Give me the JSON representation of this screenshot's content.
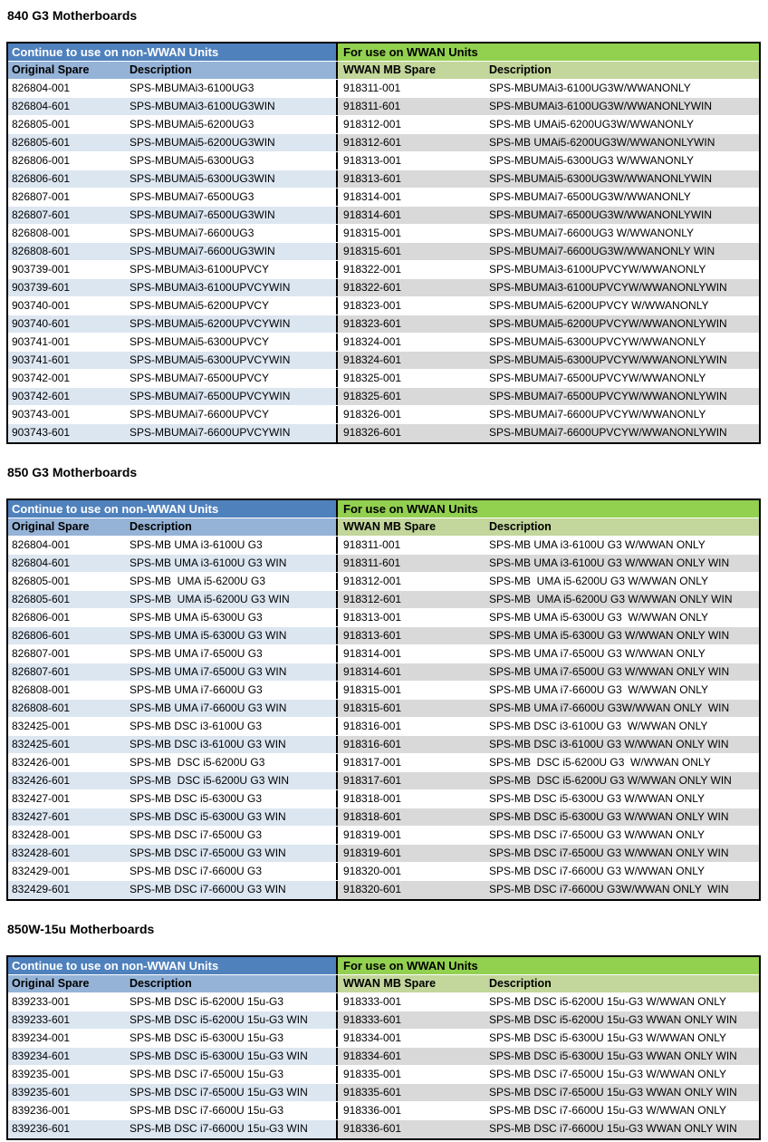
{
  "colors": {
    "header_blue": "#4f81bd",
    "header_green": "#92d050",
    "subheader_blue": "#95b3d7",
    "subheader_green": "#c3d69b",
    "stripe_blue": "#dce6f1",
    "stripe_gray": "#d9d9d9"
  },
  "sections": [
    {
      "title": "840 G3 Motherboards",
      "left_header": "Continue to use on non-WWAN Units",
      "right_header": "For use on WWAN Units",
      "columns": [
        "Original Spare",
        "Description",
        "WWAN MB Spare",
        "Description"
      ],
      "rows": [
        [
          "826804-001",
          "SPS-MBUMAi3-6100UG3",
          "918311-001",
          "SPS-MBUMAi3-6100UG3W/WWANONLY"
        ],
        [
          "826804-601",
          "SPS-MBUMAi3-6100UG3WIN",
          "918311-601",
          "SPS-MBUMAi3-6100UG3W/WWANONLYWIN"
        ],
        [
          "826805-001",
          "SPS-MBUMAi5-6200UG3",
          "918312-001",
          "SPS-MB UMAi5-6200UG3W/WWANONLY"
        ],
        [
          "826805-601",
          "SPS-MBUMAi5-6200UG3WIN",
          "918312-601",
          "SPS-MB UMAi5-6200UG3W/WWANONLYWIN"
        ],
        [
          "826806-001",
          "SPS-MBUMAi5-6300UG3",
          "918313-001",
          "SPS-MBUMAi5-6300UG3 W/WWANONLY"
        ],
        [
          "826806-601",
          "SPS-MBUMAi5-6300UG3WIN",
          "918313-601",
          "SPS-MBUMAi5-6300UG3W/WWANONLYWIN"
        ],
        [
          "826807-001",
          "SPS-MBUMAi7-6500UG3",
          "918314-001",
          "SPS-MBUMAi7-6500UG3W/WWANONLY"
        ],
        [
          "826807-601",
          "SPS-MBUMAi7-6500UG3WIN",
          "918314-601",
          "SPS-MBUMAi7-6500UG3W/WWANONLYWIN"
        ],
        [
          "826808-001",
          "SPS-MBUMAi7-6600UG3",
          "918315-001",
          "SPS-MBUMAi7-6600UG3 W/WWANONLY"
        ],
        [
          "826808-601",
          "SPS-MBUMAi7-6600UG3WIN",
          "918315-601",
          "SPS-MBUMAi7-6600UG3W/WWANONLY WIN"
        ],
        [
          "903739-001",
          "SPS-MBUMAi3-6100UPVCY",
          "918322-001",
          "SPS-MBUMAi3-6100UPVCYW/WWANONLY"
        ],
        [
          "903739-601",
          "SPS-MBUMAi3-6100UPVCYWIN",
          "918322-601",
          "SPS-MBUMAi3-6100UPVCYW/WWANONLYWIN"
        ],
        [
          "903740-001",
          "SPS-MBUMAi5-6200UPVCY",
          "918323-001",
          "SPS-MBUMAi5-6200UPVCY W/WWANONLY"
        ],
        [
          "903740-601",
          "SPS-MBUMAi5-6200UPVCYWIN",
          "918323-601",
          "SPS-MBUMAi5-6200UPVCYW/WWANONLYWIN"
        ],
        [
          "903741-001",
          "SPS-MBUMAi5-6300UPVCY",
          "918324-001",
          "SPS-MBUMAi5-6300UPVCYW/WWANONLY"
        ],
        [
          "903741-601",
          "SPS-MBUMAi5-6300UPVCYWIN",
          "918324-601",
          "SPS-MBUMAi5-6300UPVCYW/WWANONLYWIN"
        ],
        [
          "903742-001",
          "SPS-MBUMAi7-6500UPVCY",
          "918325-001",
          "SPS-MBUMAi7-6500UPVCYW/WWANONLY"
        ],
        [
          "903742-601",
          "SPS-MBUMAi7-6500UPVCYWIN",
          "918325-601",
          "SPS-MBUMAi7-6500UPVCYW/WWANONLYWIN"
        ],
        [
          "903743-001",
          "SPS-MBUMAi7-6600UPVCY",
          "918326-001",
          "SPS-MBUMAi7-6600UPVCYW/WWANONLY"
        ],
        [
          "903743-601",
          "SPS-MBUMAi7-6600UPVCYWIN",
          "918326-601",
          "SPS-MBUMAi7-6600UPVCYW/WWANONLYWIN"
        ]
      ]
    },
    {
      "title": "850 G3 Motherboards",
      "left_header": "Continue to use on non-WWAN Units",
      "right_header": "For use on WWAN Units",
      "columns": [
        "Original Spare",
        "Description",
        "WWAN MB Spare",
        "Description"
      ],
      "rows": [
        [
          "826804-001",
          "SPS-MB UMA i3-6100U G3",
          "918311-001",
          "SPS-MB UMA i3-6100U G3 W/WWAN ONLY"
        ],
        [
          "826804-601",
          "SPS-MB UMA i3-6100U G3 WIN",
          "918311-601",
          "SPS-MB UMA i3-6100U G3 W/WWAN ONLY WIN"
        ],
        [
          "826805-001",
          "SPS-MB  UMA i5-6200U G3",
          "918312-001",
          "SPS-MB  UMA i5-6200U G3 W/WWAN ONLY"
        ],
        [
          "826805-601",
          "SPS-MB  UMA i5-6200U G3 WIN",
          "918312-601",
          "SPS-MB  UMA i5-6200U G3 W/WWAN ONLY WIN"
        ],
        [
          "826806-001",
          "SPS-MB UMA i5-6300U G3",
          "918313-001",
          "SPS-MB UMA i5-6300U G3  W/WWAN ONLY"
        ],
        [
          "826806-601",
          "SPS-MB UMA i5-6300U G3 WIN",
          "918313-601",
          "SPS-MB UMA i5-6300U G3 W/WWAN ONLY WIN"
        ],
        [
          "826807-001",
          "SPS-MB UMA i7-6500U G3",
          "918314-001",
          "SPS-MB UMA i7-6500U G3 W/WWAN ONLY"
        ],
        [
          "826807-601",
          "SPS-MB UMA i7-6500U G3 WIN",
          "918314-601",
          "SPS-MB UMA i7-6500U G3 W/WWAN ONLY WIN"
        ],
        [
          "826808-001",
          "SPS-MB UMA i7-6600U G3",
          "918315-001",
          "SPS-MB UMA i7-6600U G3  W/WWAN ONLY"
        ],
        [
          "826808-601",
          "SPS-MB UMA i7-6600U G3 WIN",
          "918315-601",
          "SPS-MB UMA i7-6600U G3W/WWAN ONLY  WIN"
        ],
        [
          "832425-001",
          "SPS-MB DSC i3-6100U G3",
          "918316-001",
          "SPS-MB DSC i3-6100U G3  W/WWAN ONLY"
        ],
        [
          "832425-601",
          "SPS-MB DSC i3-6100U G3 WIN",
          "918316-601",
          "SPS-MB DSC i3-6100U G3 W/WWAN ONLY WIN"
        ],
        [
          "832426-001",
          "SPS-MB  DSC i5-6200U G3",
          "918317-001",
          "SPS-MB  DSC i5-6200U G3  W/WWAN ONLY"
        ],
        [
          "832426-601",
          "SPS-MB  DSC i5-6200U G3 WIN",
          "918317-601",
          "SPS-MB  DSC i5-6200U G3 W/WWAN ONLY WIN"
        ],
        [
          "832427-001",
          "SPS-MB DSC i5-6300U G3",
          "918318-001",
          "SPS-MB DSC i5-6300U G3 W/WWAN ONLY"
        ],
        [
          "832427-601",
          "SPS-MB DSC i5-6300U G3 WIN",
          "918318-601",
          "SPS-MB DSC i5-6300U G3 W/WWAN ONLY WIN"
        ],
        [
          "832428-001",
          "SPS-MB DSC i7-6500U G3",
          "918319-001",
          "SPS-MB DSC i7-6500U G3 W/WWAN ONLY"
        ],
        [
          "832428-601",
          "SPS-MB DSC i7-6500U G3 WIN",
          "918319-601",
          "SPS-MB DSC i7-6500U G3 W/WWAN ONLY WIN"
        ],
        [
          "832429-001",
          "SPS-MB DSC i7-6600U G3",
          "918320-001",
          "SPS-MB DSC i7-6600U G3 W/WWAN ONLY"
        ],
        [
          "832429-601",
          "SPS-MB DSC i7-6600U G3 WIN",
          "918320-601",
          "SPS-MB DSC i7-6600U G3W/WWAN ONLY  WIN"
        ]
      ]
    },
    {
      "title": "850W-15u Motherboards",
      "left_header": "Continue to use on non-WWAN Units",
      "right_header": "For use on WWAN Units",
      "columns": [
        "Original Spare",
        "Description",
        "WWAN MB Spare",
        "Description"
      ],
      "rows": [
        [
          "839233-001",
          "SPS-MB DSC i5-6200U 15u-G3",
          "918333-001",
          "SPS-MB DSC i5-6200U 15u-G3 W/WWAN ONLY"
        ],
        [
          "839233-601",
          "SPS-MB DSC i5-6200U 15u-G3 WIN",
          "918333-601",
          "SPS-MB DSC i5-6200U 15u-G3 WWAN ONLY WIN"
        ],
        [
          "839234-001",
          "SPS-MB DSC i5-6300U 15u-G3",
          "918334-001",
          "SPS-MB DSC i5-6300U 15u-G3 W/WWAN ONLY"
        ],
        [
          "839234-601",
          "SPS-MB DSC i5-6300U 15u-G3 WIN",
          "918334-601",
          "SPS-MB DSC i5-6300U 15u-G3 WWAN ONLY WIN"
        ],
        [
          "839235-001",
          "SPS-MB DSC i7-6500U 15u-G3",
          "918335-001",
          "SPS-MB DSC i7-6500U 15u-G3 W/WWAN ONLY"
        ],
        [
          "839235-601",
          "SPS-MB DSC i7-6500U 15u-G3 WIN",
          "918335-601",
          "SPS-MB DSC i7-6500U 15u-G3 WWAN ONLY WIN"
        ],
        [
          "839236-001",
          "SPS-MB DSC i7-6600U 15u-G3",
          "918336-001",
          "SPS-MB DSC i7-6600U 15u-G3 W/WWAN ONLY"
        ],
        [
          "839236-601",
          "SPS-MB DSC i7-6600U 15u-G3 WIN",
          "918336-601",
          "SPS-MB DSC i7-6600U 15u-G3 WWAN ONLY WIN"
        ]
      ]
    }
  ]
}
